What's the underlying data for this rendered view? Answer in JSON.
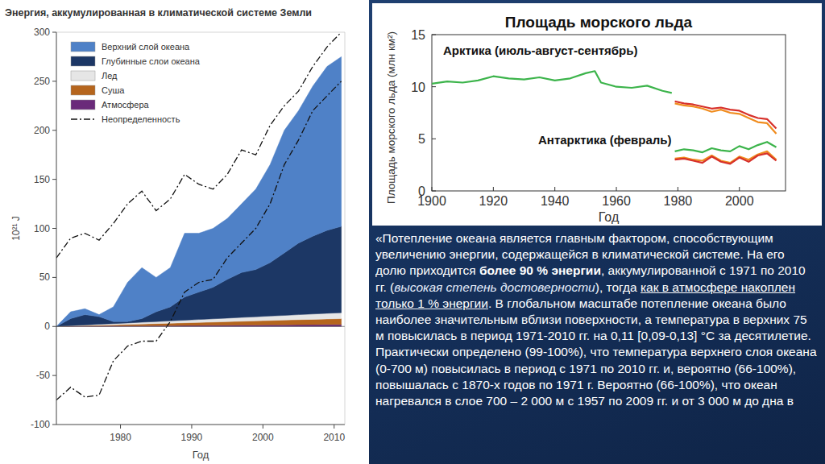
{
  "chart_data": [
    {
      "type": "area",
      "title": "Энергия, аккумулированная в климатической системе Земли",
      "x_label": "Год",
      "y_label": "10²¹ J",
      "stacked": true,
      "legend": "upper left",
      "x": [
        1971,
        1973,
        1975,
        1977,
        1979,
        1981,
        1983,
        1985,
        1987,
        1989,
        1991,
        1993,
        1995,
        1997,
        1999,
        2001,
        2003,
        2005,
        2007,
        2009,
        2011
      ],
      "xlim": [
        1971,
        2011.5
      ],
      "xticks": [
        1980,
        1990,
        2000,
        2010
      ],
      "ylim": [
        -100,
        300
      ],
      "yticks": [
        -100,
        -50,
        0,
        50,
        100,
        150,
        200,
        250,
        300
      ],
      "series": [
        {
          "name": "Верхний слой океана",
          "color": "#4f81c7",
          "values": [
            0,
            7,
            6,
            2,
            15,
            40,
            52,
            35,
            40,
            65,
            60,
            60,
            62,
            70,
            82,
            100,
            125,
            135,
            153,
            167,
            173
          ]
        },
        {
          "name": "Глубинные слои океана",
          "color": "#1c3765",
          "values": [
            0,
            7.2,
            10.5,
            7.8,
            2.1,
            1.4,
            3.7,
            10,
            14.3,
            23.6,
            27.9,
            32.2,
            39.5,
            45.8,
            48.1,
            54.4,
            63.7,
            73,
            79.3,
            84.6,
            88
          ]
        },
        {
          "name": "Лед",
          "color": "#e6e6e6",
          "values": [
            0,
            0.3,
            0.6,
            0.9,
            1.2,
            1.5,
            1.8,
            2.1,
            2.4,
            2.7,
            3,
            3.3,
            3.6,
            3.9,
            4.2,
            4.5,
            4.8,
            5.1,
            5.4,
            5.7,
            6
          ]
        },
        {
          "name": "Суша",
          "color": "#b5651d",
          "values": [
            0,
            0.3,
            0.6,
            0.9,
            1.2,
            1.5,
            1.8,
            2.1,
            2.4,
            2.7,
            3,
            3.3,
            3.6,
            3.9,
            4.2,
            4.5,
            4.8,
            5.1,
            5.4,
            5.7,
            6
          ]
        },
        {
          "name": "Атмосфера",
          "color": "#6a2a7a",
          "values": [
            0,
            0.2,
            0.3,
            0.4,
            0.5,
            0.6,
            0.7,
            0.8,
            0.9,
            1,
            1.1,
            1.2,
            1.3,
            1.4,
            1.5,
            1.6,
            1.7,
            1.8,
            1.9,
            2,
            2
          ]
        },
        {
          "name": "Неопределенность",
          "type": "line",
          "line_style": "dashdot",
          "color": "#111111",
          "values": [
            70,
            90,
            95,
            88,
            105,
            125,
            138,
            118,
            130,
            155,
            145,
            140,
            155,
            180,
            175,
            205,
            225,
            240,
            265,
            285,
            300
          ],
          "lower": [
            -75,
            -62,
            -72,
            -70,
            -35,
            -20,
            -15,
            -15,
            5,
            35,
            45,
            48,
            70,
            85,
            100,
            125,
            165,
            190,
            220,
            235,
            250
          ]
        }
      ]
    },
    {
      "type": "line",
      "title": "Площадь морского льда",
      "x_label": "Год",
      "y_label": "Площадь морского льда (млн км²)",
      "xlim": [
        1900,
        2015
      ],
      "xticks": [
        1900,
        1920,
        1940,
        1960,
        1980,
        2000
      ],
      "ylim": [
        0,
        15
      ],
      "yticks": [
        0,
        5,
        10,
        15
      ],
      "annotations": [
        "Арктика (июль-август-сентябрь)",
        "Антарктика (февраль)"
      ],
      "series": [
        {
          "color": "#3cb44b",
          "x": [
            1900,
            1905,
            1910,
            1915,
            1920,
            1925,
            1930,
            1935,
            1940,
            1945,
            1950,
            1953,
            1955,
            1960,
            1965,
            1970,
            1975,
            1978
          ],
          "values": [
            10.3,
            10.5,
            10.4,
            10.6,
            11.0,
            10.8,
            10.7,
            10.9,
            10.6,
            10.8,
            11.3,
            11.5,
            10.4,
            10.0,
            9.9,
            10.1,
            9.6,
            9.4
          ]
        },
        {
          "color": "#d7302a",
          "x": [
            1979,
            1982,
            1985,
            1988,
            1991,
            1994,
            1997,
            2000,
            2003,
            2006,
            2009,
            2012
          ],
          "values": [
            8.6,
            8.4,
            8.3,
            8.1,
            7.9,
            8.0,
            7.8,
            7.7,
            7.3,
            7.0,
            6.9,
            6.0
          ]
        },
        {
          "color": "#f08c1e",
          "x": [
            1979,
            1982,
            1985,
            1988,
            1991,
            1994,
            1997,
            2000,
            2003,
            2006,
            2009,
            2012
          ],
          "values": [
            8.4,
            8.2,
            8.1,
            7.9,
            7.6,
            7.8,
            7.5,
            7.4,
            7.0,
            6.6,
            6.5,
            5.5
          ]
        },
        {
          "color": "#3cb44b",
          "x": [
            1979,
            1982,
            1985,
            1988,
            1991,
            1994,
            1997,
            2000,
            2003,
            2006,
            2009,
            2012
          ],
          "values": [
            3.8,
            4.0,
            3.9,
            3.7,
            4.1,
            3.9,
            3.8,
            4.3,
            4.0,
            4.4,
            4.7,
            4.2
          ]
        },
        {
          "color": "#f08c1e",
          "x": [
            1979,
            1982,
            1985,
            1988,
            1991,
            1994,
            1997,
            2000,
            2003,
            2006,
            2009,
            2012
          ],
          "values": [
            3.1,
            3.2,
            3.0,
            2.9,
            3.4,
            2.9,
            2.7,
            3.3,
            3.0,
            3.5,
            3.8,
            3.0
          ]
        },
        {
          "color": "#d7302a",
          "x": [
            1979,
            1982,
            1985,
            1988,
            1991,
            1994,
            1997,
            2000,
            2003,
            2006,
            2009,
            2012
          ],
          "values": [
            3.0,
            3.1,
            2.9,
            2.7,
            3.3,
            2.8,
            2.6,
            3.2,
            2.8,
            3.4,
            3.6,
            2.9
          ]
        }
      ]
    }
  ],
  "text_block": {
    "segments": [
      {
        "text": "«Потепление океана является главным фактором, способствующим увеличению энергии, содержащейся в климатической системе. На его долю приходится ",
        "style": "normal"
      },
      {
        "text": "более 90 % энергии",
        "style": "bold"
      },
      {
        "text": ", аккумулированной с 1971 по 2010 гг. (",
        "style": "normal"
      },
      {
        "text": "высокая степень достоверности",
        "style": "italic"
      },
      {
        "text": "), тогда ",
        "style": "normal"
      },
      {
        "text": "как в атмосфере накоплен только 1 % энергии",
        "style": "underline"
      },
      {
        "text": ". В глобальном масштабе потепление океана было наиболее значительным вблизи поверхности, а температура в верхних 75 м повысилась в период 1971-2010 гг. на 0,11 [0,09-0,13] °С за десятилетие. Практически определено (99-100%), что температура верхнего слоя океана (0-700 м) повысилась в период с 1971 по 2010 гг. и, вероятно (66-100%), повышалась с 1870-х годов по 1971 г. Вероятно (66-100%), что океан нагревался в слое 700 – 2 000 м с 1957 по 2009 гг. и от 3 000 м до дна в",
        "style": "normal"
      }
    ]
  }
}
